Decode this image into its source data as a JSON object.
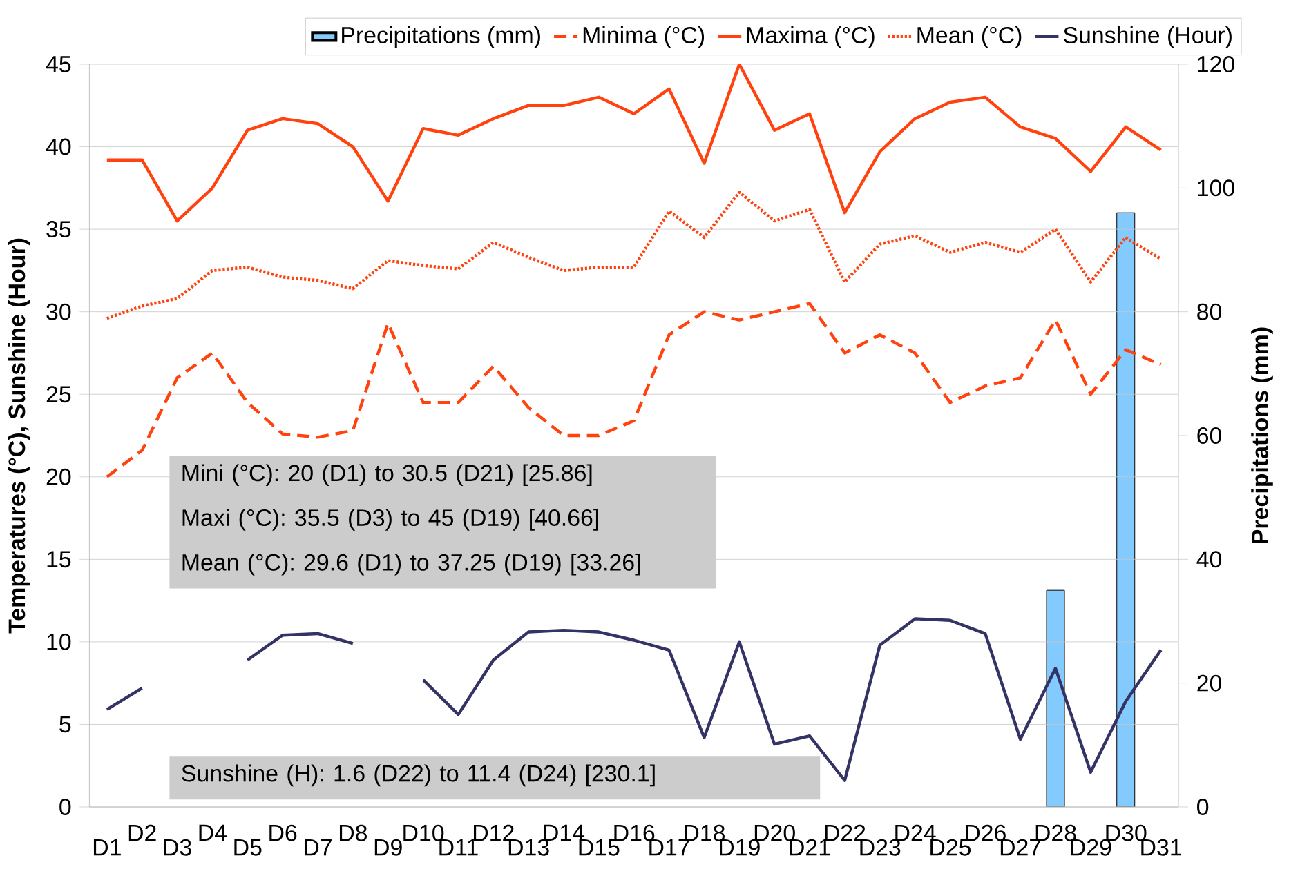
{
  "chart_data": {
    "type": "line",
    "categories": [
      "D1",
      "D2",
      "D3",
      "D4",
      "D5",
      "D6",
      "D7",
      "D8",
      "D9",
      "D10",
      "D11",
      "D12",
      "D13",
      "D14",
      "D15",
      "D16",
      "D17",
      "D18",
      "D19",
      "D20",
      "D21",
      "D22",
      "D23",
      "D24",
      "D25",
      "D26",
      "D27",
      "D28",
      "D29",
      "D30",
      "D31"
    ],
    "ylabel": "Temperatures (°C), Sunshine (Hour)",
    "y2label": "Precipitations (mm)",
    "ylim": [
      0,
      45
    ],
    "yticks": [
      0,
      5,
      10,
      15,
      20,
      25,
      30,
      35,
      40,
      45
    ],
    "y2lim": [
      0,
      120
    ],
    "y2ticks": [
      0,
      20,
      40,
      60,
      80,
      100,
      120
    ],
    "grid": "y",
    "legend": "top",
    "series": [
      {
        "name": "Precipitations (mm)",
        "type": "bar",
        "axis": "y2",
        "color": "#83caff",
        "values": [
          null,
          null,
          null,
          null,
          null,
          null,
          null,
          null,
          null,
          null,
          null,
          null,
          null,
          null,
          null,
          null,
          null,
          null,
          null,
          null,
          null,
          null,
          null,
          null,
          null,
          null,
          null,
          35,
          null,
          96,
          null
        ]
      },
      {
        "name": "Minima (°C)",
        "line_style": "dashed",
        "color": "#ff420e",
        "values": [
          20,
          21.6,
          26,
          27.5,
          24.5,
          22.6,
          22.4,
          22.8,
          29.3,
          24.5,
          24.5,
          26.7,
          24.2,
          22.5,
          22.5,
          23.4,
          28.6,
          30,
          29.5,
          30,
          30.5,
          27.5,
          28.6,
          27.5,
          24.5,
          25.5,
          26,
          29.5,
          25,
          27.7,
          26.8
        ]
      },
      {
        "name": "Maxima (°C)",
        "line_style": "solid",
        "color": "#ff420e",
        "values": [
          39.2,
          39.2,
          35.5,
          37.5,
          41,
          41.7,
          41.4,
          40,
          36.7,
          41.1,
          40.7,
          41.7,
          42.5,
          42.5,
          43,
          42,
          43.5,
          39,
          45,
          41,
          42,
          36,
          39.7,
          41.7,
          42.7,
          43,
          41.2,
          40.5,
          38.5,
          41.2,
          39.8
        ]
      },
      {
        "name": "Mean (°C)",
        "line_style": "dotted",
        "color": "#ff420e",
        "values": [
          29.6,
          30.35,
          30.8,
          32.5,
          32.7,
          32.1,
          31.9,
          31.4,
          33.1,
          32.8,
          32.6,
          34.2,
          33.3,
          32.5,
          32.7,
          32.7,
          36.1,
          34.5,
          37.25,
          35.5,
          36.2,
          31.8,
          34.1,
          34.6,
          33.6,
          34.2,
          33.6,
          35,
          31.8,
          34.5,
          33.2
        ]
      },
      {
        "name": "Sunshine (Hour)",
        "line_style": "solid",
        "color": "#333366",
        "values": [
          5.9,
          7.2,
          null,
          null,
          8.9,
          10.4,
          10.5,
          9.9,
          null,
          7.7,
          5.6,
          8.9,
          10.6,
          10.7,
          10.6,
          10.1,
          9.5,
          4.2,
          10,
          3.8,
          4.3,
          1.6,
          9.8,
          11.4,
          11.3,
          10.5,
          4.1,
          8.4,
          2.1,
          6.4,
          9.5
        ]
      }
    ],
    "annotations": [
      "Mini (°C): 20 (D1) to 30.5 (D21) [25.86]",
      "Maxi (°C): 35.5 (D3) to 45 (D19) [40.66]",
      "Mean (°C): 29.6 (D1) to 37.25 (D19) [33.26]",
      "Sunshine (H): 1.6 (D22) to 11.4 (D24) [230.1]"
    ]
  }
}
